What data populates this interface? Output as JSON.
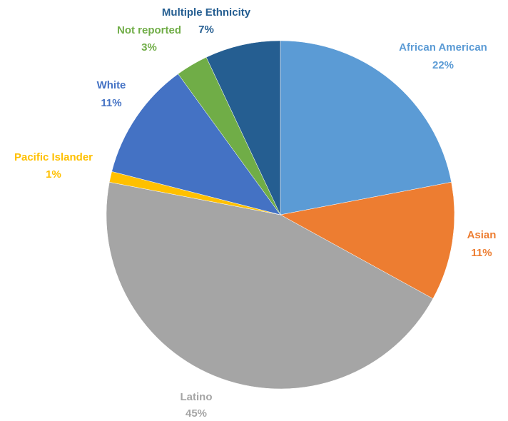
{
  "chart_data": {
    "type": "pie",
    "title": "",
    "slices": [
      {
        "name": "African American",
        "percent_label": "22%",
        "value": 22,
        "color": "#5B9BD5"
      },
      {
        "name": "Asian",
        "percent_label": "11%",
        "value": 11,
        "color": "#ED7D31"
      },
      {
        "name": "Latino",
        "percent_label": "45%",
        "value": 45,
        "color": "#A5A5A5"
      },
      {
        "name": "Pacific Islander",
        "percent_label": "1%",
        "value": 1,
        "color": "#FFC000"
      },
      {
        "name": "White",
        "percent_label": "11%",
        "value": 11,
        "color": "#4472C4"
      },
      {
        "name": "Not reported",
        "percent_label": "3%",
        "value": 3,
        "color": "#70AD47"
      },
      {
        "name": "Multiple Ethnicity",
        "percent_label": "7%",
        "value": 7,
        "color": "#255E91"
      }
    ],
    "start_angle": "12 o'clock",
    "direction": "clockwise",
    "legend": "none"
  }
}
